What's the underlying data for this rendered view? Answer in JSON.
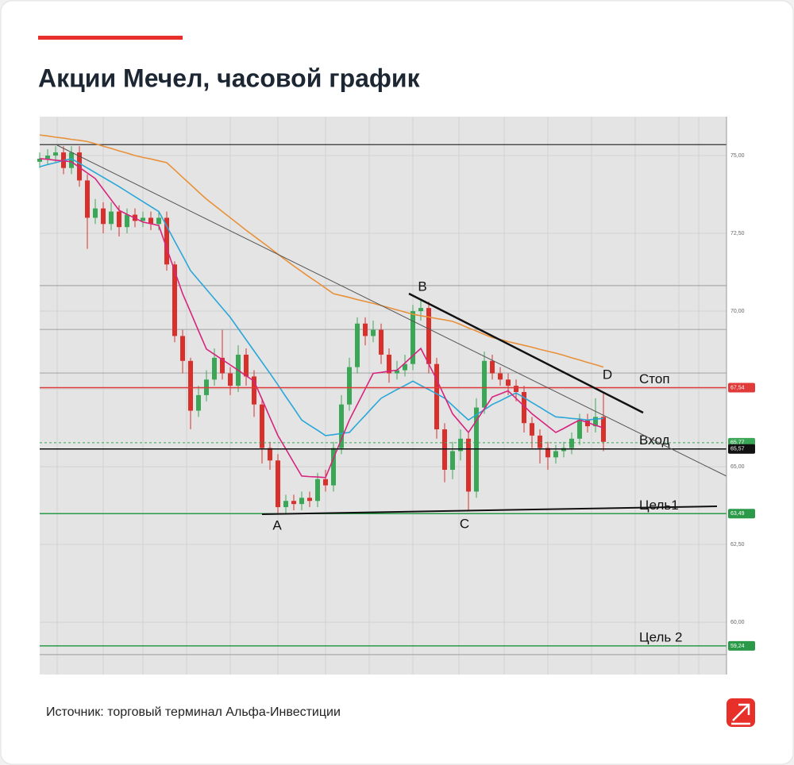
{
  "header": {
    "title": "Акции Мечел, часовой график"
  },
  "footer": {
    "source": "Источник: торговый терминал Альфа-Инвестиции"
  },
  "chart_data": {
    "type": "candlestick",
    "ylim": [
      58.32,
      76.25
    ],
    "yticks": [
      {
        "value": 60,
        "label": "60,00"
      },
      {
        "value": 62.5,
        "label": "62,50"
      },
      {
        "value": 65,
        "label": "65,00"
      },
      {
        "value": 67.5,
        "label": "67,50"
      },
      {
        "value": 70,
        "label": "70,00"
      },
      {
        "value": 72.5,
        "label": "72,50"
      },
      {
        "value": 75,
        "label": "75,00"
      }
    ],
    "grid": true,
    "up_color": "#3aa757",
    "down_color": "#d9302c",
    "open": [
      74.8,
      74.9,
      75.0,
      75.1,
      74.6,
      75.1,
      74.2,
      73.0,
      73.3,
      72.8,
      73.2,
      72.7,
      73.1,
      72.9,
      73.0,
      72.8,
      73.0,
      71.5,
      69.2,
      68.4,
      66.8,
      67.3,
      67.8,
      68.5,
      68.0,
      67.6,
      68.6,
      67.9,
      67.0,
      65.6,
      65.2,
      63.7,
      63.9,
      63.8,
      64.0,
      63.9,
      64.6,
      64.4,
      65.6,
      67.0,
      68.2,
      69.6,
      69.2,
      69.4,
      68.6,
      68.0,
      68.1,
      68.3,
      70.0,
      70.1,
      68.3,
      66.2,
      64.9,
      65.5,
      65.9,
      64.2,
      66.9,
      68.4,
      68.0,
      67.8,
      67.6,
      67.4,
      66.4,
      66.0,
      65.6,
      65.3,
      65.5,
      65.6,
      65.9,
      66.5,
      66.3,
      66.6
    ],
    "high": [
      75.1,
      75.2,
      75.3,
      75.3,
      75.3,
      75.3,
      74.4,
      73.6,
      73.5,
      73.5,
      73.4,
      73.3,
      73.3,
      73.2,
      73.2,
      73.2,
      73.2,
      71.6,
      69.4,
      68.5,
      67.6,
      68.1,
      68.8,
      69.4,
      68.2,
      68.9,
      68.8,
      68.1,
      67.2,
      65.8,
      65.4,
      64.1,
      64.1,
      64.2,
      64.2,
      64.8,
      64.9,
      65.8,
      67.3,
      68.5,
      69.8,
      69.8,
      69.7,
      69.6,
      68.8,
      68.4,
      68.6,
      70.2,
      70.4,
      70.3,
      68.5,
      66.4,
      65.8,
      66.2,
      66.1,
      67.2,
      68.7,
      68.6,
      68.2,
      68.0,
      67.8,
      67.6,
      66.6,
      66.2,
      65.8,
      65.7,
      65.8,
      66.1,
      66.7,
      66.7,
      67.2,
      67.4
    ],
    "low": [
      74.6,
      74.7,
      74.8,
      74.4,
      74.4,
      74.0,
      72.0,
      72.8,
      72.5,
      72.6,
      72.4,
      72.5,
      72.7,
      72.7,
      72.6,
      72.6,
      71.3,
      69.0,
      68.0,
      66.2,
      66.6,
      67.1,
      67.6,
      67.8,
      67.3,
      67.4,
      67.6,
      66.6,
      65.1,
      64.9,
      63.5,
      63.5,
      63.6,
      63.6,
      63.7,
      63.7,
      64.2,
      64.2,
      65.4,
      66.8,
      68.0,
      68.9,
      69.0,
      68.3,
      67.7,
      67.8,
      67.9,
      68.1,
      69.7,
      68.0,
      65.9,
      64.5,
      64.6,
      65.2,
      63.6,
      64.0,
      66.7,
      67.8,
      67.6,
      67.3,
      67.1,
      66.1,
      65.6,
      65.1,
      64.9,
      65.1,
      65.3,
      65.4,
      65.7,
      66.1,
      66.1,
      65.5
    ],
    "close": [
      74.9,
      75.0,
      75.1,
      74.6,
      75.1,
      74.2,
      73.0,
      73.3,
      72.8,
      73.2,
      72.7,
      73.1,
      72.9,
      73.0,
      72.8,
      73.0,
      71.5,
      69.2,
      68.4,
      66.8,
      67.3,
      67.8,
      68.5,
      68.0,
      67.6,
      68.6,
      67.9,
      67.0,
      65.6,
      65.2,
      63.7,
      63.9,
      63.8,
      64.0,
      63.9,
      64.6,
      64.4,
      65.6,
      67.0,
      68.2,
      69.6,
      69.2,
      69.4,
      68.6,
      68.0,
      68.1,
      68.3,
      70.0,
      70.1,
      68.3,
      66.2,
      64.9,
      65.5,
      65.9,
      64.2,
      66.9,
      68.4,
      68.0,
      67.8,
      67.6,
      67.4,
      66.4,
      66.0,
      65.6,
      65.3,
      65.5,
      65.6,
      65.9,
      66.5,
      66.3,
      66.6,
      65.8
    ],
    "series": [
      {
        "color": "#e8913a",
        "values": [
          75.66,
          75.63,
          75.59,
          75.56,
          75.52,
          75.49,
          75.45,
          75.38,
          75.3,
          75.23,
          75.15,
          75.08,
          75.0,
          74.94,
          74.89,
          74.83,
          74.77,
          74.54,
          74.3,
          74.07,
          73.83,
          73.6,
          73.4,
          73.2,
          73.0,
          72.8,
          72.6,
          72.41,
          72.22,
          72.03,
          71.83,
          71.64,
          71.45,
          71.27,
          71.09,
          70.92,
          70.74,
          70.56,
          70.5,
          70.44,
          70.37,
          70.31,
          70.25,
          70.18,
          70.11,
          70.04,
          69.97,
          69.9,
          69.85,
          69.81,
          69.76,
          69.72,
          69.67,
          69.57,
          69.46,
          69.36,
          69.25,
          69.15,
          69.09,
          69.02,
          68.96,
          68.9,
          68.84,
          68.77,
          68.71,
          68.65,
          68.58,
          68.5,
          68.43,
          68.35,
          68.28,
          68.2
        ]
      },
      {
        "color": "#2aa7d8",
        "values": [
          74.64,
          74.71,
          74.77,
          74.84,
          74.9,
          74.75,
          74.6,
          74.45,
          74.3,
          74.15,
          74.0,
          73.84,
          73.68,
          73.52,
          73.36,
          73.2,
          72.73,
          72.25,
          71.78,
          71.3,
          71.0,
          70.7,
          70.4,
          70.1,
          69.8,
          69.44,
          69.08,
          68.72,
          68.36,
          68.0,
          67.63,
          67.25,
          66.88,
          66.5,
          66.33,
          66.17,
          66.0,
          66.03,
          66.07,
          66.1,
          66.38,
          66.65,
          66.93,
          67.2,
          67.34,
          67.48,
          67.61,
          67.75,
          67.61,
          67.48,
          67.34,
          67.2,
          66.97,
          66.73,
          66.5,
          66.67,
          66.83,
          67.0,
          67.12,
          67.25,
          67.37,
          67.22,
          67.06,
          66.91,
          66.75,
          66.6,
          66.58,
          66.55,
          66.53,
          66.5,
          66.53,
          66.55
        ]
      },
      {
        "color": "#d6247e",
        "values": [
          74.9,
          74.88,
          74.85,
          74.83,
          74.8,
          74.62,
          74.44,
          74.26,
          73.92,
          73.58,
          73.24,
          73.11,
          72.99,
          72.86,
          72.81,
          72.75,
          72.02,
          71.29,
          70.56,
          69.97,
          69.37,
          68.78,
          68.61,
          68.44,
          68.27,
          68.1,
          67.92,
          67.75,
          67.17,
          66.58,
          66.0,
          65.57,
          65.13,
          64.7,
          64.68,
          64.67,
          64.65,
          65.27,
          65.88,
          66.5,
          67.0,
          67.5,
          68.0,
          68.03,
          68.07,
          68.1,
          68.33,
          68.57,
          68.8,
          68.3,
          67.8,
          67.25,
          66.7,
          66.4,
          66.1,
          66.48,
          66.86,
          67.24,
          67.34,
          67.44,
          67.19,
          66.95,
          66.7,
          66.5,
          66.3,
          66.1,
          66.23,
          66.37,
          66.5,
          66.42,
          66.33,
          66.25
        ]
      }
    ],
    "lines": [
      {
        "value": 75.35,
        "color": "#333333"
      },
      {
        "value": 70.82,
        "color": "#aaaaaa"
      },
      {
        "value": 69.41,
        "color": "#aaaaaa"
      },
      {
        "value": 68.01,
        "color": "#aaaaaa"
      },
      {
        "value": 58.96,
        "color": "#aaaaaa"
      }
    ],
    "levels": [
      {
        "value": 67.54,
        "label": "67,54",
        "name": "Стоп",
        "color": "#e03a3a"
      },
      {
        "value": 65.77,
        "label": "65,77",
        "color": "#3aa757",
        "dashed": true
      },
      {
        "value": 65.57,
        "label": "65,57",
        "name": "Вход",
        "color": "#111111"
      },
      {
        "value": 63.49,
        "label": "63,49",
        "name": "Цель1",
        "color": "#2a9a48"
      },
      {
        "value": 59.24,
        "label": "59,24",
        "name": "Цель 2",
        "color": "#2a9a48"
      }
    ],
    "annotations": [
      "A",
      "B",
      "C",
      "D"
    ]
  }
}
